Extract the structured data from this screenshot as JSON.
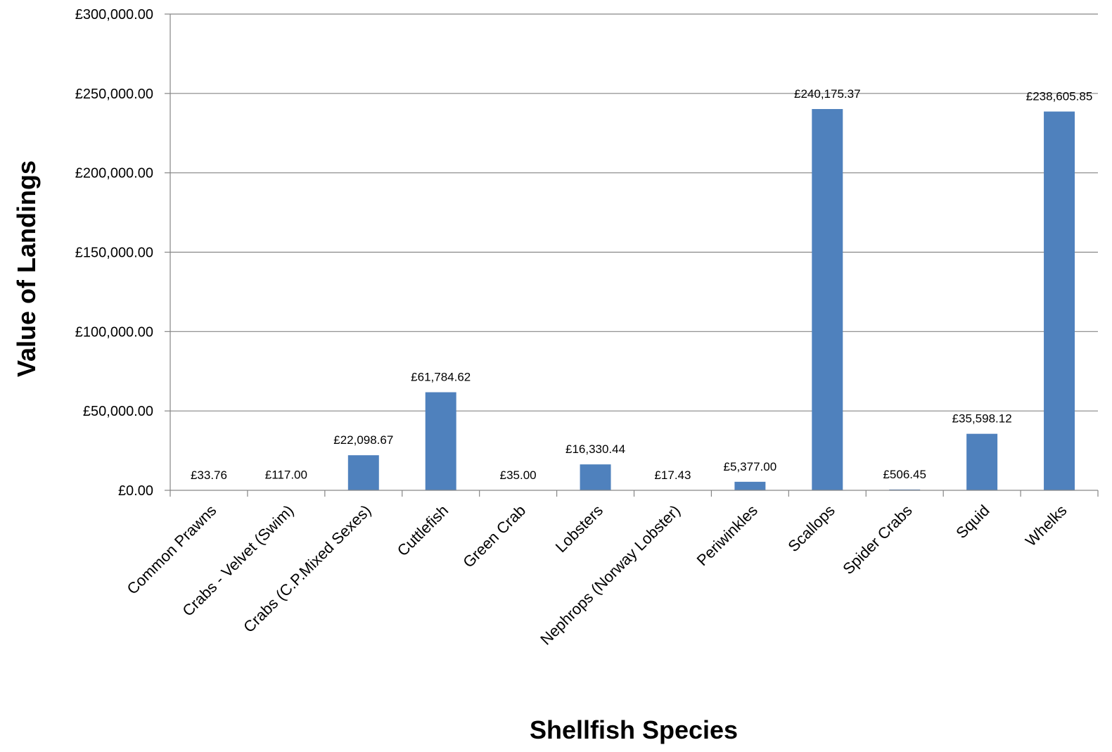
{
  "chart_data": {
    "type": "bar",
    "title": "",
    "xlabel": "Shellfish Species",
    "ylabel": "Value of Landings",
    "ylim": [
      0,
      300000
    ],
    "yticks": [
      "£0.00",
      "£50,000.00",
      "£100,000.00",
      "£150,000.00",
      "£200,000.00",
      "£250,000.00",
      "£300,000.00"
    ],
    "ytick_values": [
      0,
      50000,
      100000,
      150000,
      200000,
      250000,
      300000
    ],
    "grid": true,
    "bar_color": "#4f81bd",
    "categories": [
      "Common Prawns",
      "Crabs - Velvet (Swim)",
      "Crabs (C.P.Mixed Sexes)",
      "Cuttlefish",
      "Green Crab",
      "Lobsters",
      "Nephrops (Norway Lobster)",
      "Periwinkles",
      "Scallops",
      "Spider Crabs",
      "Squid",
      "Whelks"
    ],
    "values": [
      33.76,
      117.0,
      22098.67,
      61784.62,
      35.0,
      16330.44,
      17.43,
      5377.0,
      240175.37,
      506.45,
      35598.12,
      238605.85
    ],
    "data_labels": [
      "£33.76",
      "£117.00",
      "£22,098.67",
      "£61,784.62",
      "£35.00",
      "£16,330.44",
      "£17.43",
      "£5,377.00",
      "£240,175.37",
      "£506.45",
      "£35,598.12",
      "£238,605.85"
    ]
  }
}
